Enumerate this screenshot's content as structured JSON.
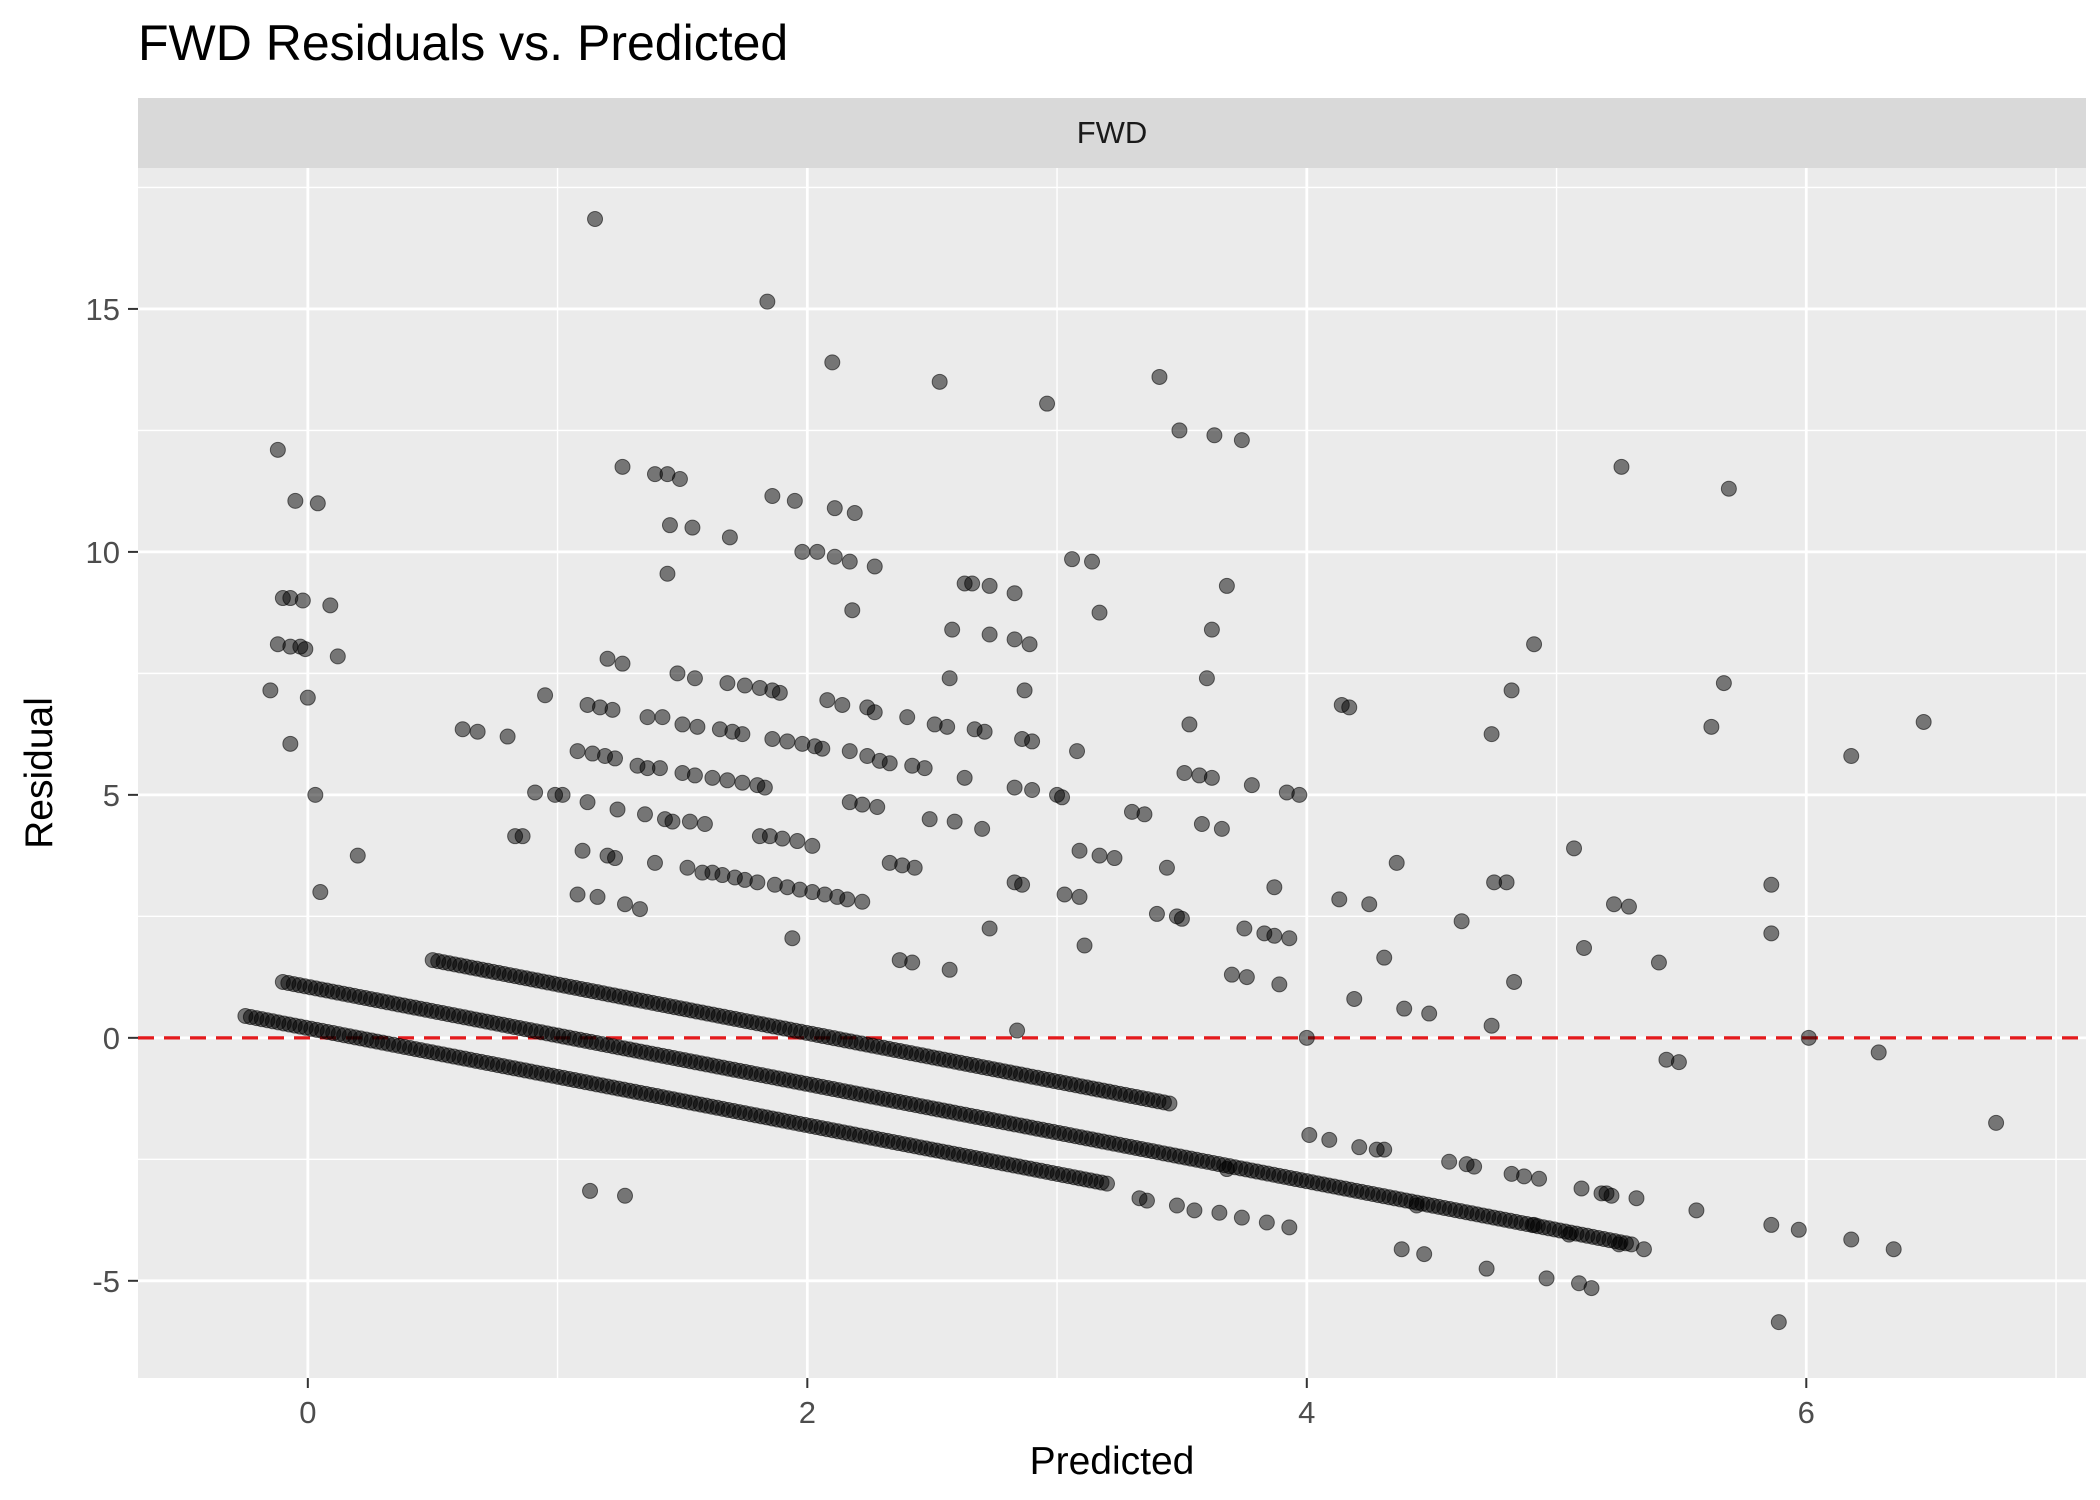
{
  "chart_data": {
    "type": "scatter",
    "title": "FWD Residuals vs. Predicted",
    "facet_label": "FWD",
    "xlabel": "Predicted",
    "ylabel": "Residual",
    "xlim": [
      -0.68,
      7.12
    ],
    "ylim": [
      -7.0,
      17.9
    ],
    "x_ticks": [
      0,
      2,
      4,
      6
    ],
    "x_tick_labels": [
      "0",
      "2",
      "4",
      "6"
    ],
    "y_ticks": [
      -5,
      0,
      5,
      10,
      15
    ],
    "y_tick_labels": [
      "-5",
      "0",
      "5",
      "10",
      "15"
    ],
    "reference_line": {
      "y": 0,
      "color": "#e41a1c",
      "style": "dashed"
    },
    "grid": true,
    "legend": "none",
    "colors": {
      "panel_background": "#ebebeb",
      "strip_background": "#d9d9d9",
      "grid_major": "#ffffff",
      "point": "#000000",
      "reference_line": "#e41a1c"
    },
    "point_alpha": 0.5,
    "bands": [
      {
        "x_start": -0.25,
        "x_end": 3.2,
        "offset": 0.2
      },
      {
        "x_start": -0.1,
        "x_end": 5.3,
        "offset": 1.05
      },
      {
        "x_start": 0.5,
        "x_end": 3.45,
        "offset": 2.1
      }
    ],
    "points": [
      [
        1.15,
        16.85
      ],
      [
        1.84,
        15.15
      ],
      [
        2.1,
        13.9
      ],
      [
        2.53,
        13.5
      ],
      [
        2.96,
        13.05
      ],
      [
        3.41,
        13.6
      ],
      [
        3.49,
        12.5
      ],
      [
        3.63,
        12.4
      ],
      [
        3.74,
        12.3
      ],
      [
        -0.12,
        12.1
      ],
      [
        0.04,
        11.0
      ],
      [
        -0.05,
        11.05
      ],
      [
        1.26,
        11.75
      ],
      [
        1.39,
        11.6
      ],
      [
        1.44,
        11.6
      ],
      [
        1.49,
        11.5
      ],
      [
        1.86,
        11.15
      ],
      [
        1.95,
        11.05
      ],
      [
        2.11,
        10.9
      ],
      [
        2.19,
        10.8
      ],
      [
        5.26,
        11.75
      ],
      [
        5.69,
        11.3
      ],
      [
        1.45,
        10.55
      ],
      [
        1.54,
        10.5
      ],
      [
        1.69,
        10.3
      ],
      [
        1.98,
        10.0
      ],
      [
        2.04,
        10.0
      ],
      [
        2.11,
        9.9
      ],
      [
        2.17,
        9.8
      ],
      [
        2.27,
        9.7
      ],
      [
        1.44,
        9.55
      ],
      [
        -0.1,
        9.05
      ],
      [
        -0.07,
        9.05
      ],
      [
        -0.02,
        9.0
      ],
      [
        0.09,
        8.9
      ],
      [
        2.18,
        8.8
      ],
      [
        2.63,
        9.35
      ],
      [
        2.66,
        9.35
      ],
      [
        2.73,
        9.3
      ],
      [
        2.83,
        9.15
      ],
      [
        3.06,
        9.85
      ],
      [
        3.14,
        9.8
      ],
      [
        3.17,
        8.75
      ],
      [
        3.68,
        9.3
      ],
      [
        -0.12,
        8.1
      ],
      [
        -0.07,
        8.05
      ],
      [
        -0.03,
        8.05
      ],
      [
        -0.01,
        8.0
      ],
      [
        0.12,
        7.85
      ],
      [
        2.58,
        8.4
      ],
      [
        2.73,
        8.3
      ],
      [
        2.83,
        8.2
      ],
      [
        2.89,
        8.1
      ],
      [
        3.62,
        8.4
      ],
      [
        4.91,
        8.1
      ],
      [
        4.82,
        7.15
      ],
      [
        5.67,
        7.3
      ],
      [
        -0.15,
        7.15
      ],
      [
        0.0,
        7.0
      ],
      [
        -0.07,
        6.05
      ],
      [
        0.03,
        5.0
      ],
      [
        0.05,
        3.0
      ],
      [
        0.2,
        3.75
      ],
      [
        0.62,
        6.35
      ],
      [
        0.68,
        6.3
      ],
      [
        0.8,
        6.2
      ],
      [
        0.83,
        4.15
      ],
      [
        0.86,
        4.15
      ],
      [
        0.91,
        5.05
      ],
      [
        0.95,
        7.05
      ],
      [
        0.99,
        5.0
      ],
      [
        1.02,
        5.0
      ],
      [
        1.08,
        5.9
      ],
      [
        1.12,
        6.85
      ],
      [
        1.17,
        6.8
      ],
      [
        1.2,
        7.8
      ],
      [
        1.22,
        6.75
      ],
      [
        1.26,
        7.7
      ],
      [
        1.14,
        5.85
      ],
      [
        1.19,
        5.8
      ],
      [
        1.23,
        5.75
      ],
      [
        1.12,
        4.85
      ],
      [
        1.16,
        2.9
      ],
      [
        1.24,
        4.7
      ],
      [
        1.1,
        3.85
      ],
      [
        1.2,
        3.75
      ],
      [
        1.23,
        3.7
      ],
      [
        1.08,
        2.95
      ],
      [
        1.27,
        2.75
      ],
      [
        1.33,
        2.65
      ],
      [
        1.36,
        6.6
      ],
      [
        1.42,
        6.6
      ],
      [
        1.32,
        5.6
      ],
      [
        1.36,
        5.55
      ],
      [
        1.41,
        5.55
      ],
      [
        1.35,
        4.6
      ],
      [
        1.43,
        4.5
      ],
      [
        1.46,
        4.45
      ],
      [
        1.39,
        3.6
      ],
      [
        1.52,
        3.5
      ],
      [
        1.48,
        7.5
      ],
      [
        1.55,
        7.4
      ],
      [
        1.5,
        6.45
      ],
      [
        1.56,
        6.4
      ],
      [
        1.5,
        5.45
      ],
      [
        1.55,
        5.4
      ],
      [
        1.53,
        4.45
      ],
      [
        1.59,
        4.4
      ],
      [
        1.58,
        3.4
      ],
      [
        1.62,
        3.4
      ],
      [
        1.66,
        3.35
      ],
      [
        1.71,
        3.3
      ],
      [
        1.75,
        3.25
      ],
      [
        1.8,
        3.2
      ],
      [
        1.68,
        7.3
      ],
      [
        1.75,
        7.25
      ],
      [
        1.81,
        7.2
      ],
      [
        1.86,
        7.15
      ],
      [
        1.89,
        7.1
      ],
      [
        1.65,
        6.35
      ],
      [
        1.7,
        6.3
      ],
      [
        1.74,
        6.25
      ],
      [
        1.62,
        5.35
      ],
      [
        1.68,
        5.3
      ],
      [
        1.74,
        5.25
      ],
      [
        1.8,
        5.2
      ],
      [
        1.83,
        5.15
      ],
      [
        1.81,
        4.15
      ],
      [
        1.85,
        4.15
      ],
      [
        1.9,
        4.1
      ],
      [
        1.96,
        4.05
      ],
      [
        1.86,
        6.15
      ],
      [
        1.92,
        6.1
      ],
      [
        1.98,
        6.05
      ],
      [
        2.03,
        6.0
      ],
      [
        2.08,
        6.95
      ],
      [
        2.14,
        6.85
      ],
      [
        2.06,
        5.95
      ],
      [
        2.17,
        5.9
      ],
      [
        2.24,
        5.8
      ],
      [
        2.29,
        5.7
      ],
      [
        2.33,
        5.65
      ],
      [
        1.87,
        3.15
      ],
      [
        1.92,
        3.1
      ],
      [
        1.97,
        3.05
      ],
      [
        2.02,
        3.0
      ],
      [
        2.07,
        2.95
      ],
      [
        2.12,
        2.9
      ],
      [
        2.16,
        2.85
      ],
      [
        2.22,
        2.8
      ],
      [
        1.94,
        2.05
      ],
      [
        2.02,
        3.95
      ],
      [
        2.17,
        4.85
      ],
      [
        2.22,
        4.8
      ],
      [
        2.28,
        4.75
      ],
      [
        2.24,
        6.8
      ],
      [
        2.27,
        6.7
      ],
      [
        2.4,
        6.6
      ],
      [
        2.51,
        6.45
      ],
      [
        2.56,
        6.4
      ],
      [
        2.42,
        5.6
      ],
      [
        2.47,
        5.55
      ],
      [
        2.57,
        7.4
      ],
      [
        2.33,
        3.6
      ],
      [
        2.38,
        3.55
      ],
      [
        2.43,
        3.5
      ],
      [
        2.37,
        1.6
      ],
      [
        2.42,
        1.55
      ],
      [
        2.49,
        4.5
      ],
      [
        2.59,
        4.45
      ],
      [
        2.57,
        1.4
      ],
      [
        2.7,
        4.3
      ],
      [
        2.63,
        5.35
      ],
      [
        2.67,
        6.35
      ],
      [
        2.71,
        6.3
      ],
      [
        2.73,
        2.25
      ],
      [
        2.83,
        5.15
      ],
      [
        2.9,
        5.1
      ],
      [
        2.83,
        3.2
      ],
      [
        2.86,
        3.15
      ],
      [
        2.87,
        7.15
      ],
      [
        2.86,
        6.15
      ],
      [
        2.9,
        6.1
      ],
      [
        2.84,
        0.15
      ],
      [
        3.0,
        5.0
      ],
      [
        3.02,
        4.95
      ],
      [
        3.03,
        2.95
      ],
      [
        3.09,
        2.9
      ],
      [
        3.08,
        5.9
      ],
      [
        3.09,
        3.85
      ],
      [
        3.11,
        1.9
      ],
      [
        3.17,
        3.75
      ],
      [
        3.23,
        3.7
      ],
      [
        3.3,
        4.65
      ],
      [
        3.35,
        4.6
      ],
      [
        3.4,
        2.55
      ],
      [
        3.48,
        2.5
      ],
      [
        3.5,
        2.45
      ],
      [
        3.44,
        3.5
      ],
      [
        3.53,
        6.45
      ],
      [
        3.51,
        5.45
      ],
      [
        3.57,
        5.4
      ],
      [
        3.62,
        5.35
      ],
      [
        3.58,
        4.4
      ],
      [
        3.66,
        4.3
      ],
      [
        3.6,
        7.4
      ],
      [
        3.7,
        1.3
      ],
      [
        3.76,
        1.25
      ],
      [
        3.78,
        5.2
      ],
      [
        3.75,
        2.25
      ],
      [
        3.83,
        2.15
      ],
      [
        3.87,
        2.1
      ],
      [
        3.93,
        2.05
      ],
      [
        3.87,
        3.1
      ],
      [
        3.89,
        1.1
      ],
      [
        3.92,
        5.05
      ],
      [
        3.97,
        5.0
      ],
      [
        4.0,
        0.0
      ],
      [
        4.14,
        6.85
      ],
      [
        4.17,
        6.8
      ],
      [
        4.13,
        2.85
      ],
      [
        4.25,
        2.75
      ],
      [
        4.19,
        0.8
      ],
      [
        4.31,
        1.65
      ],
      [
        4.36,
        3.6
      ],
      [
        4.39,
        0.6
      ],
      [
        4.49,
        0.5
      ],
      [
        4.62,
        2.4
      ],
      [
        4.74,
        6.25
      ],
      [
        4.75,
        3.2
      ],
      [
        4.8,
        3.2
      ],
      [
        4.83,
        1.15
      ],
      [
        4.74,
        0.25
      ],
      [
        5.07,
        3.9
      ],
      [
        5.11,
        1.85
      ],
      [
        5.23,
        2.75
      ],
      [
        5.29,
        2.7
      ],
      [
        5.41,
        1.55
      ],
      [
        5.44,
        -0.45
      ],
      [
        5.49,
        -0.5
      ],
      [
        5.62,
        6.4
      ],
      [
        5.86,
        3.15
      ],
      [
        5.86,
        2.15
      ],
      [
        6.01,
        0.0
      ],
      [
        6.18,
        5.8
      ],
      [
        6.47,
        6.5
      ],
      [
        6.29,
        -0.3
      ],
      [
        6.76,
        -1.75
      ],
      [
        1.13,
        -3.15
      ],
      [
        1.27,
        -3.25
      ],
      [
        3.68,
        -2.7
      ],
      [
        4.38,
        -4.35
      ],
      [
        4.44,
        -3.45
      ],
      [
        4.47,
        -4.45
      ],
      [
        4.72,
        -4.75
      ],
      [
        4.91,
        -3.85
      ],
      [
        4.96,
        -4.95
      ],
      [
        5.05,
        -4.05
      ],
      [
        5.09,
        -5.05
      ],
      [
        5.14,
        -5.15
      ],
      [
        5.35,
        -4.35
      ],
      [
        5.25,
        -4.25
      ],
      [
        5.56,
        -3.55
      ],
      [
        5.86,
        -3.85
      ],
      [
        5.89,
        -5.85
      ],
      [
        5.97,
        -3.95
      ],
      [
        6.18,
        -4.15
      ],
      [
        6.35,
        -4.35
      ],
      [
        5.1,
        -3.1
      ],
      [
        5.18,
        -3.2
      ],
      [
        5.22,
        -3.25
      ],
      [
        5.32,
        -3.3
      ],
      [
        5.2,
        -3.2
      ],
      [
        3.93,
        -3.9
      ],
      [
        3.84,
        -3.8
      ],
      [
        3.74,
        -3.7
      ],
      [
        3.65,
        -3.6
      ],
      [
        3.55,
        -3.55
      ],
      [
        3.48,
        -3.45
      ],
      [
        3.36,
        -3.35
      ],
      [
        3.33,
        -3.3
      ],
      [
        4.31,
        -2.3
      ],
      [
        4.28,
        -2.3
      ],
      [
        4.21,
        -2.25
      ],
      [
        4.09,
        -2.1
      ],
      [
        4.01,
        -2.0
      ],
      [
        4.57,
        -2.55
      ],
      [
        4.64,
        -2.6
      ],
      [
        4.67,
        -2.65
      ],
      [
        4.82,
        -2.8
      ],
      [
        4.87,
        -2.85
      ],
      [
        4.93,
        -2.9
      ]
    ]
  }
}
